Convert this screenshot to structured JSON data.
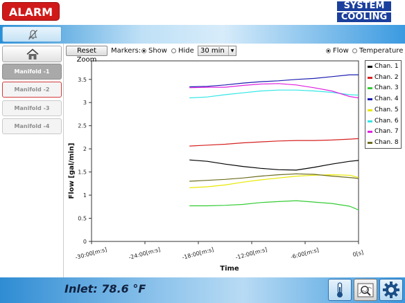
{
  "header": {
    "alarm_label": "ALARM",
    "logo_line1": "SYSTEM",
    "logo_line2": "COOLING"
  },
  "nav": {
    "mute_icon": "muted-bell-icon",
    "home_icon": "home-icon"
  },
  "sidebar": {
    "items": [
      {
        "label": "Manifold -1",
        "state": "selected"
      },
      {
        "label": "Manifold -2",
        "state": "alarm"
      },
      {
        "label": "Manifold -3",
        "state": "normal"
      },
      {
        "label": "Manifold -4",
        "state": "normal"
      }
    ]
  },
  "toolbar": {
    "reset_zoom_label": "Reset Zoom",
    "markers_label": "Markers:",
    "show_label": "Show",
    "hide_label": "Hide",
    "markers_selected": "Show",
    "time_range_value": "30 min",
    "flow_label": "Flow",
    "temperature_label": "Temperature",
    "mode_selected": "Flow"
  },
  "chart_data": {
    "type": "line",
    "ylabel": "Flow [gal/min]",
    "xlabel": "Time",
    "x_ticks": [
      "-30:00[m:s]",
      "-24:00[m:s]",
      "-18:00[m:s]",
      "-12:00[m:s]",
      "-6:00[m:s]",
      "0[s]"
    ],
    "y_ticks": [
      "0",
      "0.5",
      "1",
      "1.5",
      "2",
      "2.5",
      "3",
      "3.5"
    ],
    "xlim": [
      -30,
      0
    ],
    "ylim": [
      0,
      3.9
    ],
    "x": [
      -19,
      -17,
      -15,
      -13,
      -11,
      -9,
      -7,
      -5,
      -3,
      -1,
      0
    ],
    "series": [
      {
        "name": "Chan. 1",
        "color": "#000000",
        "values": [
          1.76,
          1.73,
          1.67,
          1.62,
          1.58,
          1.55,
          1.54,
          1.6,
          1.67,
          1.73,
          1.75
        ]
      },
      {
        "name": "Chan. 2",
        "color": "#d62020",
        "values": [
          2.06,
          2.08,
          2.1,
          2.13,
          2.15,
          2.17,
          2.18,
          2.18,
          2.19,
          2.21,
          2.22
        ]
      },
      {
        "name": "Chan. 3",
        "color": "#33cc33",
        "values": [
          0.77,
          0.77,
          0.78,
          0.8,
          0.84,
          0.86,
          0.88,
          0.85,
          0.82,
          0.76,
          0.68
        ]
      },
      {
        "name": "Chan. 4",
        "color": "#1c1cb0",
        "values": [
          3.34,
          3.35,
          3.38,
          3.42,
          3.45,
          3.47,
          3.5,
          3.52,
          3.56,
          3.6,
          3.6
        ]
      },
      {
        "name": "Chan. 5",
        "color": "#e8e800",
        "values": [
          1.16,
          1.18,
          1.22,
          1.28,
          1.33,
          1.37,
          1.41,
          1.43,
          1.44,
          1.43,
          1.38
        ]
      },
      {
        "name": "Chan. 6",
        "color": "#33e6e6",
        "values": [
          3.1,
          3.12,
          3.17,
          3.21,
          3.25,
          3.27,
          3.27,
          3.25,
          3.22,
          3.17,
          3.16
        ]
      },
      {
        "name": "Chan. 7",
        "color": "#e020e0",
        "values": [
          3.32,
          3.33,
          3.33,
          3.37,
          3.4,
          3.41,
          3.38,
          3.32,
          3.25,
          3.13,
          3.1
        ]
      },
      {
        "name": "Chan. 8",
        "color": "#6b6b1e",
        "values": [
          1.3,
          1.32,
          1.34,
          1.37,
          1.41,
          1.44,
          1.46,
          1.45,
          1.41,
          1.38,
          1.36
        ]
      }
    ],
    "grid": false,
    "legend": "top-right"
  },
  "footer": {
    "inlet_text": "Inlet: 78.6 °F",
    "icons": [
      "thermometer-icon",
      "chart-zoom-icon",
      "settings-gear-icon"
    ]
  }
}
